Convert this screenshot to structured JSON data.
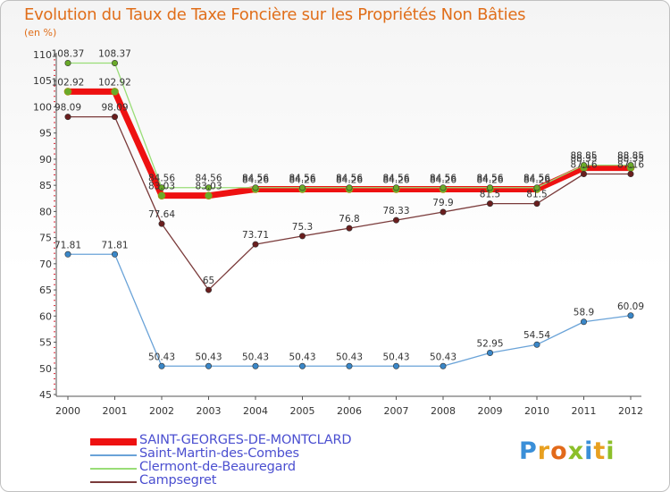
{
  "title": "Evolution du Taux de Taxe Foncière sur les Propriétés Non Bâties",
  "unit": "(en %)",
  "logo": {
    "text": [
      "P",
      "r",
      "o",
      "x",
      "i",
      "t",
      "i"
    ],
    "colors": [
      "#3a8fd8",
      "#e8a020",
      "#e26a1a",
      "#8cbf2a",
      "#3a8fd8",
      "#e8a020",
      "#8cbf2a"
    ]
  },
  "chart_data": {
    "type": "line",
    "title": "Evolution du Taux de Taxe Foncière sur les Propriétés Non Bâties",
    "ylabel": "(en %)",
    "xlabel": "",
    "ylim": [
      45,
      110
    ],
    "yticks": [
      "45",
      "50",
      "55",
      "60",
      "65",
      "70",
      "75",
      "80",
      "85",
      "90",
      "95",
      "100",
      "105",
      "110"
    ],
    "categories": [
      "2000",
      "2001",
      "2002",
      "2003",
      "2004",
      "2005",
      "2006",
      "2007",
      "2008",
      "2009",
      "2010",
      "2011",
      "2012"
    ],
    "grid": false,
    "series": [
      {
        "name": "SAINT-GEORGES-DE-MONTCLARD",
        "color": "#ee1111",
        "width": 7,
        "marker": "#6aaa2a",
        "values": [
          102.92,
          102.92,
          83.03,
          83.03,
          84.26,
          84.26,
          84.26,
          84.26,
          84.26,
          84.26,
          84.26,
          88.35,
          88.35
        ],
        "labels": [
          "102.92",
          "102.92",
          "83.03",
          "83.03",
          "84.26",
          "84.26",
          "84.26",
          "84.26",
          "84.26",
          "84.26",
          "84.26",
          "88.35",
          "88.35"
        ]
      },
      {
        "name": "Saint-Martin-des-Combes",
        "color": "#6aa3d8",
        "width": 1.3,
        "marker": "#3a87c8",
        "values": [
          71.81,
          71.81,
          50.43,
          50.43,
          50.43,
          50.43,
          50.43,
          50.43,
          50.43,
          52.95,
          54.54,
          58.9,
          60.09
        ],
        "labels": [
          "71.81",
          "71.81",
          "50.43",
          "50.43",
          "50.43",
          "50.43",
          "50.43",
          "50.43",
          "50.43",
          "52.95",
          "54.54",
          "58.9",
          "60.09"
        ]
      },
      {
        "name": "Clermont-de-Beauregard",
        "color": "#99dd77",
        "width": 1.3,
        "marker": "#6aaa2a",
        "values": [
          108.37,
          108.37,
          84.56,
          84.56,
          84.56,
          84.56,
          84.56,
          84.56,
          84.56,
          84.56,
          84.56,
          88.85,
          88.85
        ],
        "labels": [
          "108.37",
          "108.37",
          "84.56",
          "84.56",
          "84.56",
          "84.56",
          "84.56",
          "84.56",
          "84.56",
          "84.56",
          "84.56",
          "88.85",
          "88.85"
        ]
      },
      {
        "name": "Campsegret",
        "color": "#7a3a3a",
        "width": 1.3,
        "marker": "#6a1e1e",
        "values": [
          98.09,
          98.09,
          77.64,
          65,
          73.71,
          75.3,
          76.8,
          78.33,
          79.9,
          81.5,
          81.5,
          87.16,
          87.16
        ],
        "labels": [
          "98.09",
          "98.09",
          "77.64",
          "65",
          "73.71",
          "75.3",
          "76.8",
          "78.33",
          "79.9",
          "81.5",
          "81.5",
          "87.16",
          "87.16"
        ]
      }
    ]
  }
}
